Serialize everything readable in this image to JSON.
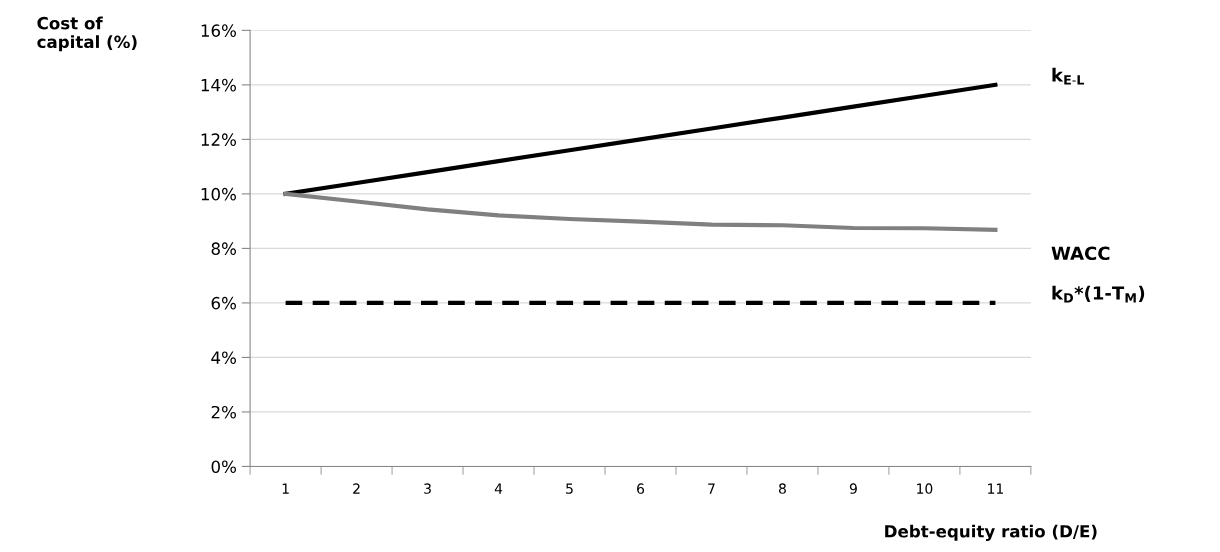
{
  "chart_data": {
    "type": "line",
    "ylabel": "Cost of\ncapital (%)",
    "xlabel": "Debt-equity ratio (D/E)",
    "categories": [
      "1",
      "2",
      "3",
      "4",
      "5",
      "6",
      "7",
      "8",
      "9",
      "10",
      "11"
    ],
    "series": [
      {
        "name": "k$_{E-L}$",
        "color": "#000000",
        "line_style": "solid",
        "values": [
          10,
          10.4,
          10.8,
          11.2,
          11.6,
          12,
          12.4,
          12.8,
          13.2,
          13.6,
          14
        ]
      },
      {
        "name": "WACC",
        "color": "#808080",
        "line_style": "solid",
        "values": [
          10,
          9.72,
          9.43,
          9.21,
          9.08,
          8.98,
          8.87,
          8.85,
          8.75,
          8.74,
          8.68
        ]
      },
      {
        "name": "k$_{D}$*(1-T$_{M}$)",
        "color": "#000000",
        "line_style": "dashed",
        "values": [
          6,
          6,
          6,
          6,
          6,
          6,
          6,
          6,
          6,
          6,
          6
        ]
      }
    ],
    "ylim": [
      0,
      16
    ],
    "yticks": [
      {
        "value": 0,
        "label": "0%"
      },
      {
        "value": 2,
        "label": "2%"
      },
      {
        "value": 4,
        "label": "4%"
      },
      {
        "value": 6,
        "label": "6%"
      },
      {
        "value": 8,
        "label": "8%"
      },
      {
        "value": 10,
        "label": "10%"
      },
      {
        "value": 12,
        "label": "12%"
      },
      {
        "value": 14,
        "label": "14%"
      },
      {
        "value": 16,
        "label": "16%"
      }
    ],
    "grid": "y",
    "marker": "none",
    "legend": false
  }
}
